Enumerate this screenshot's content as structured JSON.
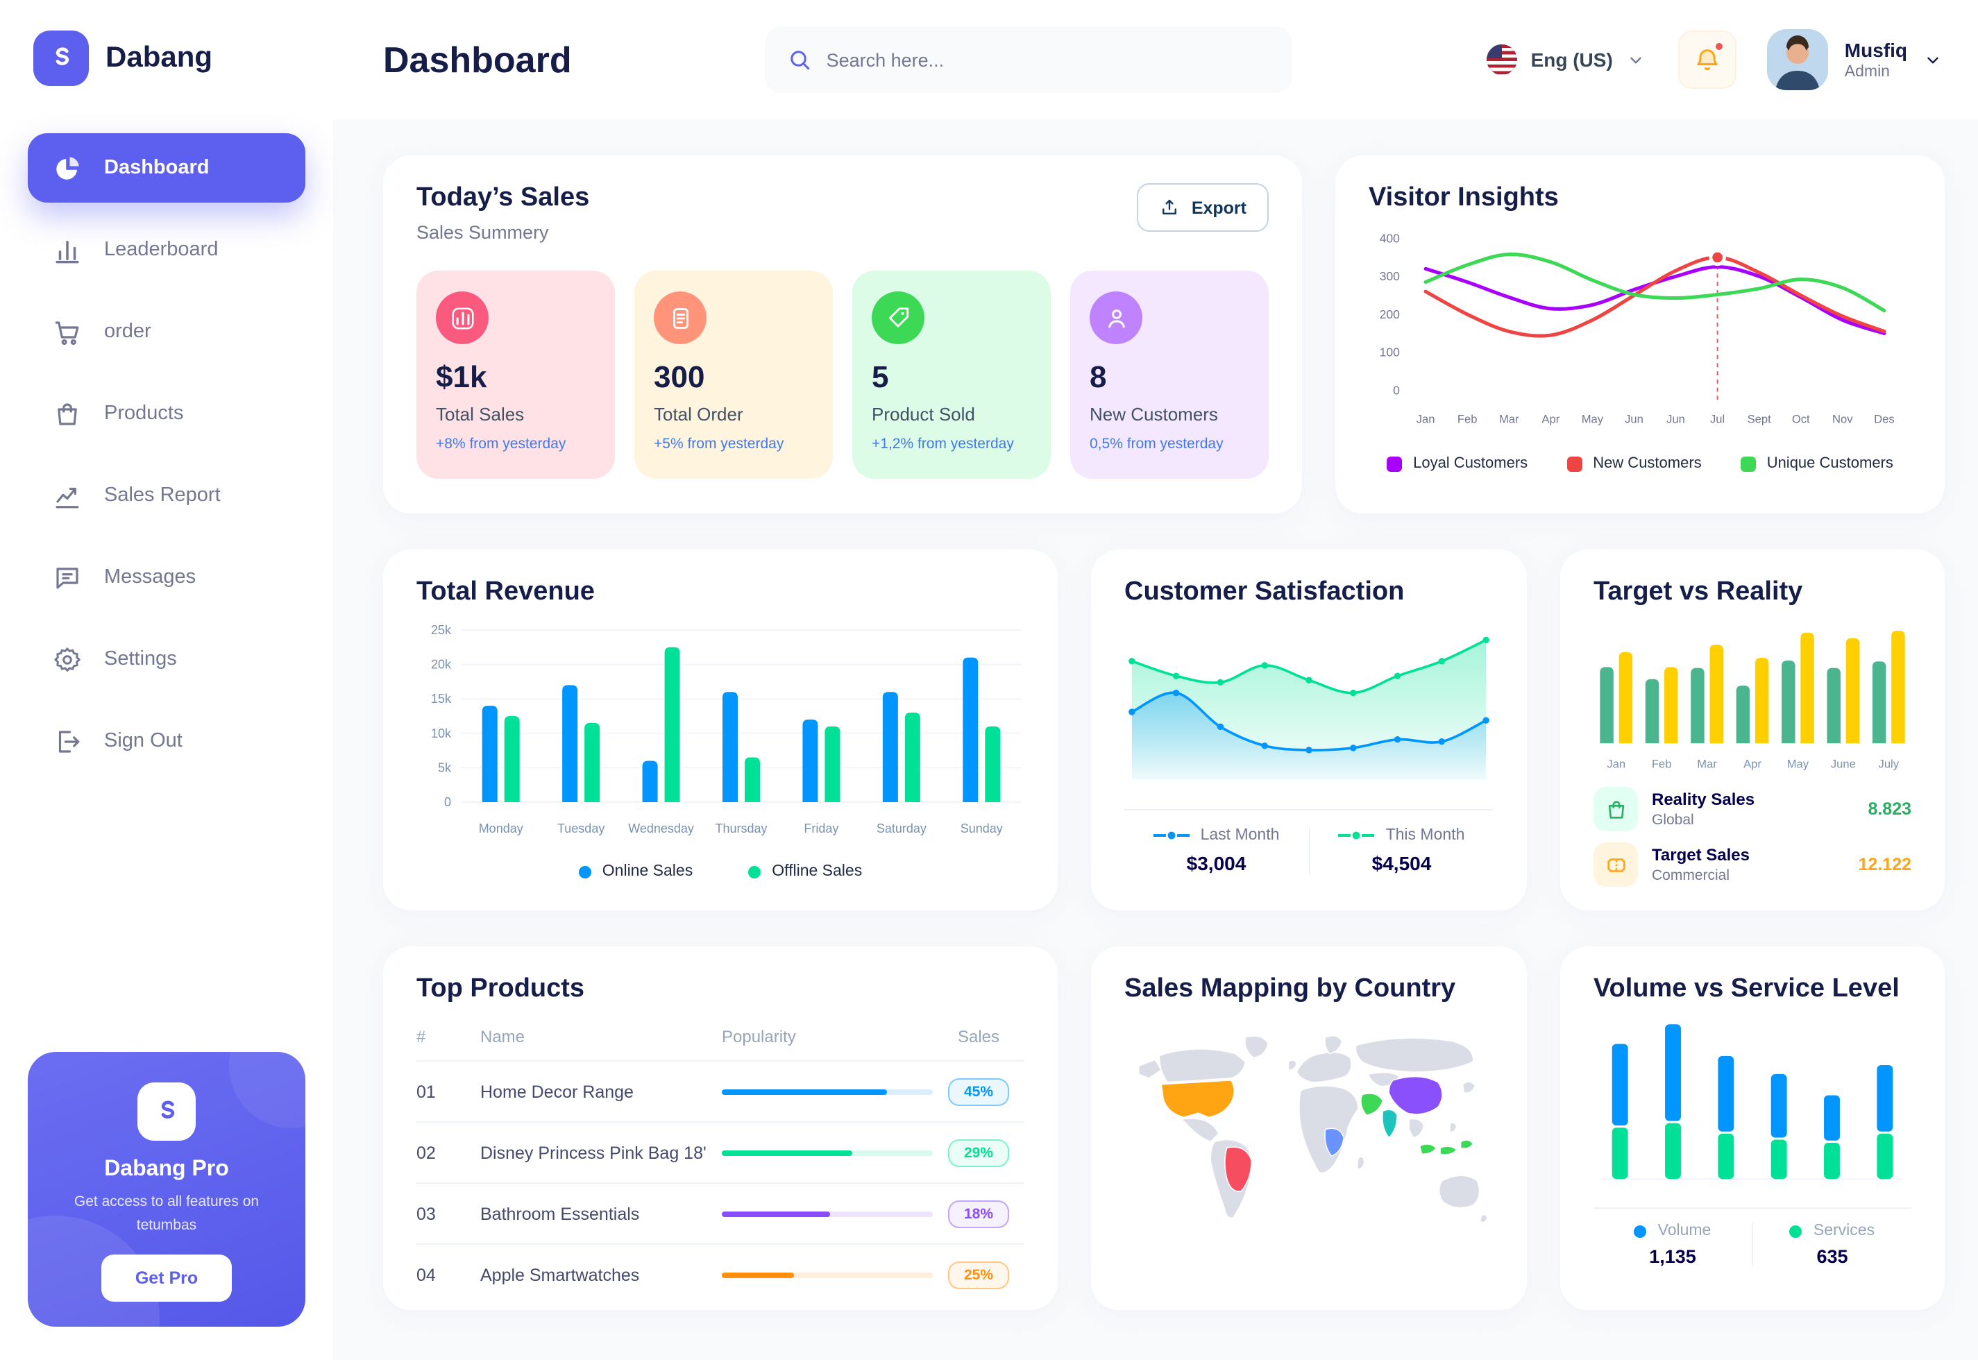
{
  "brand": {
    "name": "Dabang"
  },
  "header": {
    "title": "Dashboard",
    "search_placeholder": "Search here...",
    "language": "Eng (US)",
    "user": {
      "name": "Musfiq",
      "role": "Admin"
    }
  },
  "sidebar": {
    "items": [
      {
        "label": "Dashboard",
        "icon": "pie-chart",
        "active": true
      },
      {
        "label": "Leaderboard",
        "icon": "bar-chart"
      },
      {
        "label": "order",
        "icon": "cart"
      },
      {
        "label": "Products",
        "icon": "bag"
      },
      {
        "label": "Sales Report",
        "icon": "line-chart"
      },
      {
        "label": "Messages",
        "icon": "message"
      },
      {
        "label": "Settings",
        "icon": "gear"
      },
      {
        "label": "Sign Out",
        "icon": "sign-out"
      }
    ],
    "promo": {
      "title": "Dabang Pro",
      "text": "Get access to all features on tetumbas",
      "button": "Get Pro"
    }
  },
  "todays_sales": {
    "title": "Today’s Sales",
    "subtitle": "Sales Summery",
    "export_label": "Export",
    "stats": [
      {
        "value": "$1k",
        "label": "Total Sales",
        "delta": "+8% from yesterday",
        "bg": "#FFE2E5",
        "icon_bg": "#FA5A7D",
        "icon": "stat-chart"
      },
      {
        "value": "300",
        "label": "Total Order",
        "delta": "+5% from yesterday",
        "bg": "#FFF4DE",
        "icon_bg": "#FF947A",
        "icon": "stat-list"
      },
      {
        "value": "5",
        "label": "Product Sold",
        "delta": "+1,2% from yesterday",
        "bg": "#DCFCE7",
        "icon_bg": "#3CD856",
        "icon": "stat-tag"
      },
      {
        "value": "8",
        "label": "New Customers",
        "delta": "0,5% from yesterday",
        "bg": "#F3E8FF",
        "icon_bg": "#BF83FF",
        "icon": "stat-user"
      }
    ]
  },
  "visitor_insights": {
    "title": "Visitor Insights",
    "chart": {
      "type": "line",
      "x": [
        "Jan",
        "Feb",
        "Mar",
        "Apr",
        "May",
        "Jun",
        "Jun",
        "Jul",
        "Sept",
        "Oct",
        "Nov",
        "Des"
      ],
      "ylim": [
        0,
        400
      ],
      "yticks": [
        0,
        100,
        200,
        300,
        400
      ],
      "series": [
        {
          "name": "Loyal Customers",
          "color": "#A700FF",
          "values": [
            320,
            285,
            245,
            215,
            225,
            265,
            300,
            325,
            300,
            245,
            185,
            150
          ]
        },
        {
          "name": "New Customers",
          "color": "#EF4444",
          "values": [
            260,
            200,
            155,
            145,
            185,
            250,
            315,
            350,
            310,
            250,
            195,
            155
          ]
        },
        {
          "name": "Unique Customers",
          "color": "#3CD856",
          "values": [
            285,
            330,
            358,
            338,
            290,
            252,
            243,
            252,
            268,
            292,
            270,
            210
          ]
        }
      ],
      "highlight": {
        "series": 1,
        "index": 7
      }
    }
  },
  "total_revenue": {
    "title": "Total Revenue",
    "chart": {
      "type": "bar",
      "categories": [
        "Monday",
        "Tuesday",
        "Wednesday",
        "Thursday",
        "Friday",
        "Saturday",
        "Sunday"
      ],
      "ylim": [
        0,
        25
      ],
      "yticks": [
        "0",
        "5k",
        "10k",
        "15k",
        "20k",
        "25k"
      ],
      "series": [
        {
          "name": "Online Sales",
          "color": "#0095FF",
          "values": [
            14,
            17,
            6,
            16,
            12,
            16,
            21
          ]
        },
        {
          "name": "Offline Sales",
          "color": "#00E096",
          "values": [
            12.5,
            11.5,
            22.5,
            6.5,
            11,
            13,
            11
          ]
        }
      ]
    }
  },
  "customer_satisfaction": {
    "title": "Customer Satisfaction",
    "chart": {
      "type": "area",
      "series": [
        {
          "name": "Last Month",
          "color": "#0095FF",
          "total": "$3,004",
          "values": [
            62,
            71,
            55,
            46,
            44,
            45,
            49,
            48,
            58
          ]
        },
        {
          "name": "This Month",
          "color": "#00E096",
          "total": "$4,504",
          "values": [
            86,
            79,
            76,
            84,
            77,
            71,
            79,
            86,
            96
          ]
        }
      ]
    }
  },
  "target_vs_reality": {
    "title": "Target vs Reality",
    "chart": {
      "type": "bar",
      "categories": [
        "Jan",
        "Feb",
        "Mar",
        "Apr",
        "May",
        "June",
        "July"
      ],
      "ylim": [
        0,
        12.5
      ],
      "series": [
        {
          "name": "Reality Sales",
          "color": "#4AB58E",
          "values": [
            8.2,
            6.9,
            8.1,
            6.2,
            8.9,
            8.1,
            8.8
          ]
        },
        {
          "name": "Target Sales",
          "color": "#FFCF00",
          "values": [
            9.8,
            8.2,
            10.6,
            9.2,
            11.9,
            11.3,
            12.1
          ]
        }
      ]
    },
    "legend": [
      {
        "label": "Reality Sales",
        "sub": "Global",
        "value": "8.823",
        "color": "#27AE60",
        "bg": "#E2FFF3",
        "icon": "bag"
      },
      {
        "label": "Target Sales",
        "sub": "Commercial",
        "value": "12.122",
        "color": "#FFA412",
        "bg": "#FFF4DE",
        "icon": "ticket"
      }
    ]
  },
  "top_products": {
    "title": "Top Products",
    "columns": [
      "#",
      "Name",
      "Popularity",
      "Sales"
    ],
    "rows": [
      {
        "num": "01",
        "name": "Home Decor Range",
        "popularity": 78,
        "sales": "45%",
        "color": "#0095FF"
      },
      {
        "num": "02",
        "name": "Disney Princess Pink Bag 18'",
        "popularity": 62,
        "sales": "29%",
        "color": "#00E096"
      },
      {
        "num": "03",
        "name": "Bathroom Essentials",
        "popularity": 51,
        "sales": "18%",
        "color": "#884DFF"
      },
      {
        "num": "04",
        "name": "Apple Smartwatches",
        "popularity": 34,
        "sales": "25%",
        "color": "#FF8F0D"
      }
    ]
  },
  "sales_mapping": {
    "title": "Sales Mapping by Country",
    "regions": [
      {
        "name": "United States",
        "color": "#FFA412"
      },
      {
        "name": "Brazil",
        "color": "#F64E60"
      },
      {
        "name": "China",
        "color": "#8950FC"
      },
      {
        "name": "India",
        "color": "#1BC5BD"
      },
      {
        "name": "Saudi Arabia",
        "color": "#3CD856"
      },
      {
        "name": "Indonesia",
        "color": "#3CD856"
      },
      {
        "name": "Dem. Rep. Congo",
        "color": "#6993FF"
      }
    ]
  },
  "volume_service": {
    "title": "Volume vs Service Level",
    "chart": {
      "type": "stacked-bar",
      "series": [
        {
          "name": "Services",
          "color": "#00E096",
          "values": [
            34,
            37,
            30,
            26,
            24,
            30
          ]
        },
        {
          "name": "Volume",
          "color": "#0095FF",
          "values": [
            54,
            64,
            50,
            42,
            30,
            44
          ]
        }
      ]
    },
    "legend": [
      {
        "label": "Volume",
        "value": "1,135",
        "color": "#0095FF"
      },
      {
        "label": "Services",
        "value": "635",
        "color": "#00E096"
      }
    ]
  }
}
